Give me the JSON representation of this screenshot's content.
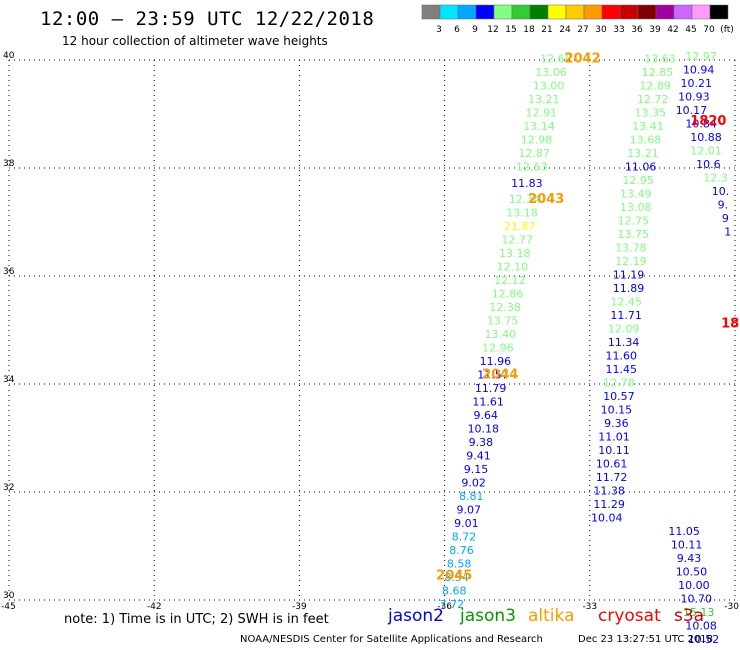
{
  "header": {
    "title": "12:00 – 23:59 UTC 12/22/2018",
    "subtitle": "12 hour collection of altimeter wave heights"
  },
  "color_scale": {
    "labels": [
      "3",
      "6",
      "9",
      "12",
      "15",
      "18",
      "21",
      "24",
      "27",
      "30",
      "33",
      "36",
      "39",
      "42",
      "45",
      "70",
      "(ft)"
    ],
    "colors": [
      "#7f7f7f",
      "#00e5ff",
      "#00a8ff",
      "#0000ff",
      "#80ff80",
      "#33cc33",
      "#008000",
      "#ffff00",
      "#ffcc00",
      "#ff9900",
      "#ff0000",
      "#cc0000",
      "#800000",
      "#a000a0",
      "#cc66ff",
      "#ff99ff",
      "#000000"
    ]
  },
  "note": "note:  1) Time is in UTC;  2) SWH is in feet",
  "satellites": [
    {
      "name": "jason2",
      "color": "#0000ff"
    },
    {
      "name": "jason3",
      "color": "#009900"
    },
    {
      "name": "altika",
      "color": "#ff9900"
    },
    {
      "name": "cryosat",
      "color": "#ff0000"
    },
    {
      "name": "s3a",
      "color": "#cc0000"
    }
  ],
  "footer": {
    "left": "NOAA/NESDIS Center for Satellite Applications and Research",
    "right": "Dec 23 13:27:51 UTC 2018"
  },
  "chart_data": {
    "type": "scatter",
    "xlim": [
      -45,
      -30
    ],
    "ylim": [
      30,
      40
    ],
    "x_ticks": [
      -45,
      -42,
      -39,
      -36,
      -33,
      -30
    ],
    "x_tick_labels": [
      "-45",
      "-42",
      "-39",
      "-36",
      "-33",
      "-30"
    ],
    "y_ticks": [
      30,
      32,
      34,
      36,
      38,
      40
    ],
    "y_tick_labels": [
      "30",
      "32",
      "34",
      "36",
      "38",
      "40"
    ],
    "grid": true,
    "time_labels": [
      {
        "text": "2042",
        "lon": -33.15,
        "lat": 39.95,
        "color": "#ff9900"
      },
      {
        "text": "2043",
        "lon": -33.9,
        "lat": 37.35,
        "color": "#ff9900"
      },
      {
        "text": "2044",
        "lon": -34.85,
        "lat": 34.1,
        "color": "#ff9900"
      },
      {
        "text": "2045",
        "lon": -35.8,
        "lat": 30.38,
        "color": "#ff9900"
      },
      {
        "text": "1820",
        "lon": -30.55,
        "lat": 38.8,
        "color": "#ff0000"
      },
      {
        "text": "18",
        "lon": -30.1,
        "lat": 35.05,
        "color": "#ff0000"
      }
    ],
    "series": [
      {
        "name": "altika",
        "points": [
          {
            "lon": -33.7,
            "lat": 39.95,
            "v": "12.68",
            "c": "#80ff80"
          },
          {
            "lon": -33.8,
            "lat": 39.7,
            "v": "13.06",
            "c": "#80ff80"
          },
          {
            "lon": -33.85,
            "lat": 39.45,
            "v": "13.00",
            "c": "#80ff80"
          },
          {
            "lon": -33.95,
            "lat": 39.2,
            "v": "13.21",
            "c": "#80ff80"
          },
          {
            "lon": -34.0,
            "lat": 38.95,
            "v": "12.91",
            "c": "#80ff80"
          },
          {
            "lon": -34.05,
            "lat": 38.7,
            "v": "13.14",
            "c": "#80ff80"
          },
          {
            "lon": -34.1,
            "lat": 38.45,
            "v": "12.98",
            "c": "#80ff80"
          },
          {
            "lon": -34.15,
            "lat": 38.2,
            "v": "12.87",
            "c": "#80ff80"
          },
          {
            "lon": -34.2,
            "lat": 37.95,
            "v": "12.63",
            "c": "#80ff80"
          },
          {
            "lon": -34.3,
            "lat": 37.65,
            "v": "11.83",
            "c": "#0000ff"
          },
          {
            "lon": -34.35,
            "lat": 37.35,
            "v": "12.34",
            "c": "#80ff80"
          },
          {
            "lon": -34.4,
            "lat": 37.1,
            "v": "13.18",
            "c": "#80ff80"
          },
          {
            "lon": -34.45,
            "lat": 36.85,
            "v": "21.87",
            "c": "#ffff00"
          },
          {
            "lon": -34.5,
            "lat": 36.6,
            "v": "12.77",
            "c": "#80ff80"
          },
          {
            "lon": -34.55,
            "lat": 36.35,
            "v": "13.18",
            "c": "#80ff80"
          },
          {
            "lon": -34.6,
            "lat": 36.1,
            "v": "12.10",
            "c": "#80ff80"
          },
          {
            "lon": -34.65,
            "lat": 35.85,
            "v": "12.12",
            "c": "#80ff80"
          },
          {
            "lon": -34.7,
            "lat": 35.6,
            "v": "12.86",
            "c": "#80ff80"
          },
          {
            "lon": -34.75,
            "lat": 35.35,
            "v": "12.38",
            "c": "#80ff80"
          },
          {
            "lon": -34.8,
            "lat": 35.1,
            "v": "13.75",
            "c": "#80ff80"
          },
          {
            "lon": -34.85,
            "lat": 34.85,
            "v": "13.40",
            "c": "#80ff80"
          },
          {
            "lon": -34.9,
            "lat": 34.6,
            "v": "12.96",
            "c": "#80ff80"
          },
          {
            "lon": -34.95,
            "lat": 34.35,
            "v": "11.96",
            "c": "#0000ff"
          },
          {
            "lon": -35.0,
            "lat": 34.1,
            "v": "11.57",
            "c": "#0000ff"
          },
          {
            "lon": -35.05,
            "lat": 33.85,
            "v": "11.79",
            "c": "#0000ff"
          },
          {
            "lon": -35.1,
            "lat": 33.6,
            "v": "11.61",
            "c": "#0000ff"
          },
          {
            "lon": -35.15,
            "lat": 33.35,
            "v": "9.64",
            "c": "#0000ff"
          },
          {
            "lon": -35.2,
            "lat": 33.1,
            "v": "10.18",
            "c": "#0000ff"
          },
          {
            "lon": -35.25,
            "lat": 32.85,
            "v": "9.38",
            "c": "#0000ff"
          },
          {
            "lon": -35.3,
            "lat": 32.6,
            "v": "9.41",
            "c": "#0000ff"
          },
          {
            "lon": -35.35,
            "lat": 32.35,
            "v": "9.15",
            "c": "#0000ff"
          },
          {
            "lon": -35.4,
            "lat": 32.1,
            "v": "9.02",
            "c": "#0000ff"
          },
          {
            "lon": -35.45,
            "lat": 31.85,
            "v": "8.81",
            "c": "#00a8ff"
          },
          {
            "lon": -35.5,
            "lat": 31.6,
            "v": "9.07",
            "c": "#0000ff"
          },
          {
            "lon": -35.55,
            "lat": 31.35,
            "v": "9.01",
            "c": "#0000ff"
          },
          {
            "lon": -35.6,
            "lat": 31.1,
            "v": "8.72",
            "c": "#00a8ff"
          },
          {
            "lon": -35.65,
            "lat": 30.85,
            "v": "8.76",
            "c": "#00a8ff"
          },
          {
            "lon": -35.7,
            "lat": 30.6,
            "v": "8.58",
            "c": "#00a8ff"
          },
          {
            "lon": -35.75,
            "lat": 30.35,
            "v": "8.54",
            "c": "#00a8ff"
          },
          {
            "lon": -35.8,
            "lat": 30.1,
            "v": "8.68",
            "c": "#00a8ff"
          },
          {
            "lon": -35.85,
            "lat": 29.85,
            "v": "7.72",
            "c": "#00a8ff"
          }
        ]
      },
      {
        "name": "jason3",
        "points": [
          {
            "lon": -31.55,
            "lat": 39.95,
            "v": "13.63",
            "c": "#80ff80"
          },
          {
            "lon": -31.6,
            "lat": 39.7,
            "v": "12.85",
            "c": "#80ff80"
          },
          {
            "lon": -31.65,
            "lat": 39.45,
            "v": "12.89",
            "c": "#80ff80"
          },
          {
            "lon": -31.7,
            "lat": 39.2,
            "v": "12.72",
            "c": "#80ff80"
          },
          {
            "lon": -31.75,
            "lat": 38.95,
            "v": "13.35",
            "c": "#80ff80"
          },
          {
            "lon": -31.8,
            "lat": 38.7,
            "v": "13.41",
            "c": "#80ff80"
          },
          {
            "lon": -31.85,
            "lat": 38.45,
            "v": "13.68",
            "c": "#80ff80"
          },
          {
            "lon": -31.9,
            "lat": 38.2,
            "v": "13.21",
            "c": "#80ff80"
          },
          {
            "lon": -31.95,
            "lat": 37.95,
            "v": "11.06",
            "c": "#0000ff"
          },
          {
            "lon": -32.0,
            "lat": 37.7,
            "v": "12.95",
            "c": "#80ff80"
          },
          {
            "lon": -32.05,
            "lat": 37.45,
            "v": "13.49",
            "c": "#80ff80"
          },
          {
            "lon": -32.05,
            "lat": 37.2,
            "v": "13.08",
            "c": "#80ff80"
          },
          {
            "lon": -32.1,
            "lat": 36.95,
            "v": "12.75",
            "c": "#80ff80"
          },
          {
            "lon": -32.1,
            "lat": 36.7,
            "v": "13.75",
            "c": "#80ff80"
          },
          {
            "lon": -32.15,
            "lat": 36.45,
            "v": "13.78",
            "c": "#80ff80"
          },
          {
            "lon": -32.15,
            "lat": 36.2,
            "v": "12.19",
            "c": "#80ff80"
          },
          {
            "lon": -32.2,
            "lat": 35.95,
            "v": "11.19",
            "c": "#0000ff"
          },
          {
            "lon": -32.2,
            "lat": 35.7,
            "v": "11.89",
            "c": "#0000ff"
          },
          {
            "lon": -32.25,
            "lat": 35.45,
            "v": "12.45",
            "c": "#80ff80"
          },
          {
            "lon": -32.25,
            "lat": 35.2,
            "v": "11.71",
            "c": "#0000ff"
          },
          {
            "lon": -32.3,
            "lat": 34.95,
            "v": "12.09",
            "c": "#80ff80"
          },
          {
            "lon": -32.3,
            "lat": 34.7,
            "v": "11.34",
            "c": "#0000ff"
          },
          {
            "lon": -32.35,
            "lat": 34.45,
            "v": "11.60",
            "c": "#0000ff"
          },
          {
            "lon": -32.35,
            "lat": 34.2,
            "v": "11.45",
            "c": "#0000ff"
          },
          {
            "lon": -32.4,
            "lat": 33.95,
            "v": "12.78",
            "c": "#80ff80"
          },
          {
            "lon": -32.4,
            "lat": 33.7,
            "v": "10.57",
            "c": "#0000ff"
          },
          {
            "lon": -32.45,
            "lat": 33.45,
            "v": "10.15",
            "c": "#0000ff"
          },
          {
            "lon": -32.45,
            "lat": 33.2,
            "v": "9.36",
            "c": "#0000ff"
          },
          {
            "lon": -32.5,
            "lat": 32.95,
            "v": "11.01",
            "c": "#0000ff"
          },
          {
            "lon": -32.5,
            "lat": 32.7,
            "v": "10.11",
            "c": "#0000ff"
          },
          {
            "lon": -32.55,
            "lat": 32.45,
            "v": "10.61",
            "c": "#0000ff"
          },
          {
            "lon": -32.55,
            "lat": 32.2,
            "v": "11.72",
            "c": "#0000ff"
          },
          {
            "lon": -32.6,
            "lat": 31.95,
            "v": "11.38",
            "c": "#0000ff"
          },
          {
            "lon": -32.6,
            "lat": 31.7,
            "v": "11.29",
            "c": "#0000ff"
          },
          {
            "lon": -32.65,
            "lat": 31.45,
            "v": "10.04",
            "c": "#0000ff"
          }
        ]
      },
      {
        "name": "jason2",
        "points": [
          {
            "lon": -30.7,
            "lat": 40.0,
            "v": "12.97",
            "c": "#80ff80"
          },
          {
            "lon": -30.75,
            "lat": 39.75,
            "v": "10.94",
            "c": "#0000ff"
          },
          {
            "lon": -30.8,
            "lat": 39.5,
            "v": "10.21",
            "c": "#0000ff"
          },
          {
            "lon": -30.85,
            "lat": 39.25,
            "v": "10.93",
            "c": "#0000ff"
          },
          {
            "lon": -30.9,
            "lat": 39.0,
            "v": "10.17",
            "c": "#0000ff"
          },
          {
            "lon": -30.7,
            "lat": 38.75,
            "v": "10.84",
            "c": "#0000ff"
          },
          {
            "lon": -30.6,
            "lat": 38.5,
            "v": "10.88",
            "c": "#0000ff"
          },
          {
            "lon": -30.6,
            "lat": 38.25,
            "v": "12.01",
            "c": "#80ff80"
          },
          {
            "lon": -30.55,
            "lat": 38.0,
            "v": "10.6",
            "c": "#0000ff"
          },
          {
            "lon": -30.4,
            "lat": 37.75,
            "v": "12.3",
            "c": "#80ff80"
          },
          {
            "lon": -30.3,
            "lat": 37.5,
            "v": "10.",
            "c": "#0000ff"
          },
          {
            "lon": -30.25,
            "lat": 37.25,
            "v": "9.",
            "c": "#0000ff"
          },
          {
            "lon": -30.2,
            "lat": 37.0,
            "v": "9",
            "c": "#0000ff"
          },
          {
            "lon": -30.15,
            "lat": 36.75,
            "v": "1",
            "c": "#0000ff"
          },
          {
            "lon": -31.05,
            "lat": 31.2,
            "v": "11.05",
            "c": "#0000ff"
          },
          {
            "lon": -31.0,
            "lat": 30.95,
            "v": "10.11",
            "c": "#0000ff"
          },
          {
            "lon": -30.95,
            "lat": 30.7,
            "v": "9.43",
            "c": "#0000ff"
          },
          {
            "lon": -30.9,
            "lat": 30.45,
            "v": "10.50",
            "c": "#0000ff"
          },
          {
            "lon": -30.85,
            "lat": 30.2,
            "v": "10.00",
            "c": "#0000ff"
          },
          {
            "lon": -30.8,
            "lat": 29.95,
            "v": "10.70",
            "c": "#0000ff"
          },
          {
            "lon": -30.75,
            "lat": 29.7,
            "v": "15.13",
            "c": "#33cc33"
          },
          {
            "lon": -30.7,
            "lat": 29.45,
            "v": "10.08",
            "c": "#0000ff"
          },
          {
            "lon": -30.65,
            "lat": 29.2,
            "v": "10.52",
            "c": "#0000ff"
          }
        ]
      }
    ]
  }
}
